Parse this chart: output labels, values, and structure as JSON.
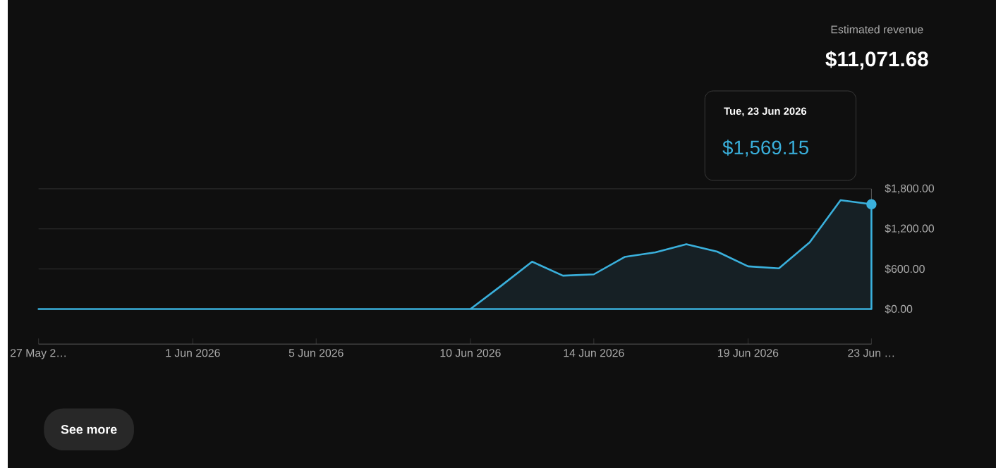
{
  "chart_data": {
    "type": "area",
    "title": "Estimated revenue",
    "subtitle": "$11,071.68",
    "x": [
      "2026-05-27",
      "2026-05-28",
      "2026-05-29",
      "2026-05-30",
      "2026-05-31",
      "2026-06-01",
      "2026-06-02",
      "2026-06-03",
      "2026-06-04",
      "2026-06-05",
      "2026-06-06",
      "2026-06-07",
      "2026-06-08",
      "2026-06-09",
      "2026-06-10",
      "2026-06-11",
      "2026-06-12",
      "2026-06-13",
      "2026-06-14",
      "2026-06-15",
      "2026-06-16",
      "2026-06-17",
      "2026-06-18",
      "2026-06-19",
      "2026-06-20",
      "2026-06-21",
      "2026-06-22",
      "2026-06-23"
    ],
    "series": [
      {
        "color": "#3ab0dc",
        "values": [
          0,
          0,
          0,
          0,
          0,
          0,
          0,
          0,
          0,
          0,
          0,
          0,
          0,
          0,
          0,
          350,
          710,
          500,
          520,
          780,
          850,
          970,
          860,
          640,
          610,
          1000,
          1630,
          1569.15
        ]
      },
      {
        "type": "scatter",
        "color": "#3ab0dc",
        "x": [
          "2026-06-23"
        ],
        "values": [
          1569.15
        ]
      }
    ],
    "xlim": [
      "2026-05-27",
      "2026-06-23"
    ],
    "xticks": [
      {
        "value": "2026-05-27",
        "label": "27 May 2…"
      },
      {
        "value": "2026-06-01",
        "label": "1 Jun 2026"
      },
      {
        "value": "2026-06-05",
        "label": "5 Jun 2026"
      },
      {
        "value": "2026-06-10",
        "label": "10 Jun 2026"
      },
      {
        "value": "2026-06-14",
        "label": "14 Jun 2026"
      },
      {
        "value": "2026-06-19",
        "label": "19 Jun 2026"
      },
      {
        "value": "2026-06-23",
        "label": "23 Jun …"
      }
    ],
    "ylim": [
      0,
      1800
    ],
    "yticks": [
      {
        "value": 0,
        "label": "$0.00"
      },
      {
        "value": 600,
        "label": "$600.00"
      },
      {
        "value": 1200,
        "label": "$1,200.00"
      },
      {
        "value": 1800,
        "label": "$1,800.00"
      }
    ],
    "grid": "y",
    "annotations": [
      "Tue, 23 Jun 2026",
      "$1,569.15",
      "See more"
    ]
  }
}
